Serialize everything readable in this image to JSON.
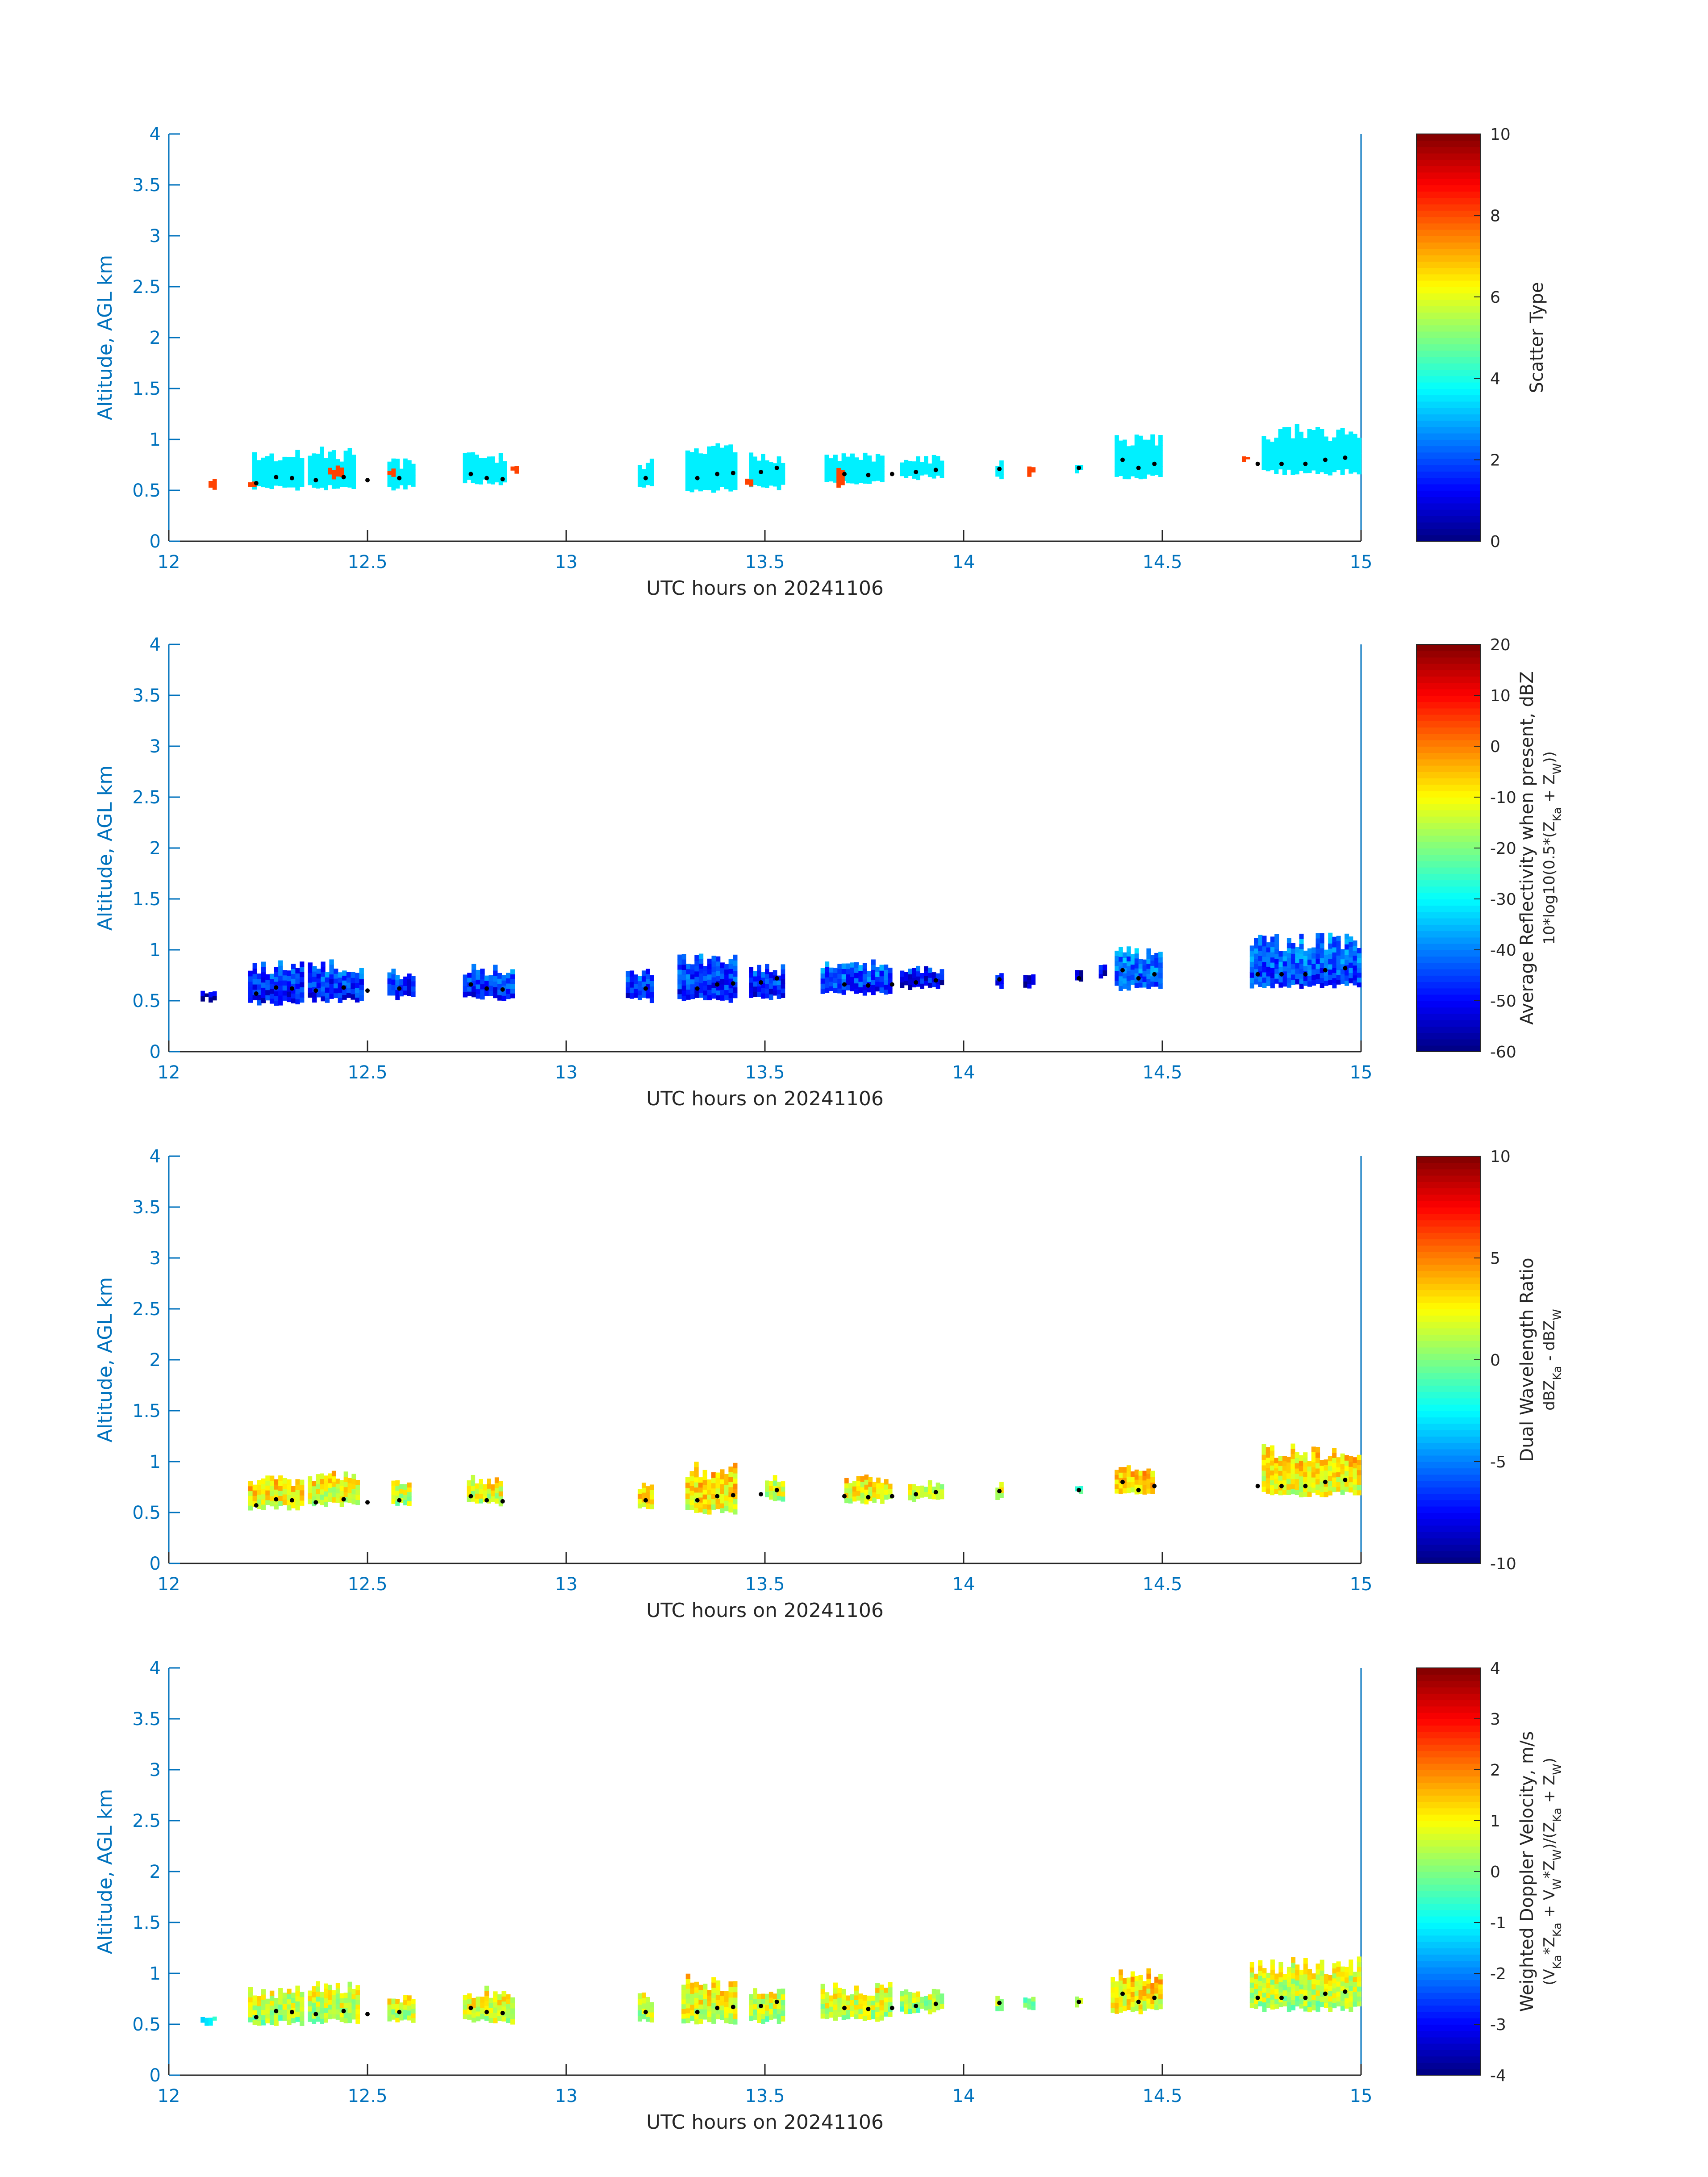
{
  "figure": {
    "date_label": "UTC hours on 20241106"
  },
  "chart_data": [
    {
      "type": "heatmap",
      "name": "scatter-type",
      "xlabel": "UTC hours on 20241106",
      "ylabel": "Altitude, AGL km",
      "xlim": [
        12,
        15
      ],
      "ylim": [
        0,
        4
      ],
      "xticks": [
        "12",
        "12.5",
        "13",
        "13.5",
        "14",
        "14.5",
        "15"
      ],
      "yticks": [
        "0",
        "0.5",
        "1",
        "1.5",
        "2",
        "2.5",
        "3",
        "3.5",
        "4"
      ],
      "colorbar": {
        "label": "Scatter Type",
        "label2": "",
        "range": [
          0,
          10
        ],
        "ticks": [
          "0",
          "2",
          "4",
          "6",
          "8",
          "10"
        ]
      },
      "clusters": [
        {
          "x0": 12.21,
          "x1": 12.34,
          "bottom": 0.5,
          "top": 0.9,
          "value": 3.6
        },
        {
          "x0": 12.35,
          "x1": 12.47,
          "bottom": 0.5,
          "top": 0.93,
          "value": 3.6
        },
        {
          "x0": 12.55,
          "x1": 12.62,
          "bottom": 0.5,
          "top": 0.82,
          "value": 3.6
        },
        {
          "x0": 12.74,
          "x1": 12.85,
          "bottom": 0.55,
          "top": 0.88,
          "value": 3.6
        },
        {
          "x0": 13.18,
          "x1": 13.22,
          "bottom": 0.5,
          "top": 0.82,
          "value": 3.6
        },
        {
          "x0": 13.3,
          "x1": 13.43,
          "bottom": 0.48,
          "top": 1.0,
          "value": 3.6
        },
        {
          "x0": 13.46,
          "x1": 13.55,
          "bottom": 0.5,
          "top": 0.88,
          "value": 3.6
        },
        {
          "x0": 13.65,
          "x1": 13.8,
          "bottom": 0.55,
          "top": 0.88,
          "value": 3.6
        },
        {
          "x0": 13.84,
          "x1": 13.95,
          "bottom": 0.6,
          "top": 0.85,
          "value": 3.6
        },
        {
          "x0": 14.08,
          "x1": 14.1,
          "bottom": 0.6,
          "top": 0.8,
          "value": 3.6
        },
        {
          "x0": 14.28,
          "x1": 14.3,
          "bottom": 0.65,
          "top": 0.8,
          "value": 3.6
        },
        {
          "x0": 14.38,
          "x1": 14.5,
          "bottom": 0.6,
          "top": 1.05,
          "value": 3.6
        },
        {
          "x0": 14.75,
          "x1": 15.0,
          "bottom": 0.65,
          "top": 1.15,
          "value": 3.6
        },
        {
          "x0": 12.1,
          "x1": 12.12,
          "bottom": 0.48,
          "top": 0.62,
          "value": 8.1
        },
        {
          "x0": 12.2,
          "x1": 12.22,
          "bottom": 0.48,
          "top": 0.62,
          "value": 8.1
        },
        {
          "x0": 12.4,
          "x1": 12.44,
          "bottom": 0.6,
          "top": 0.75,
          "value": 8.1
        },
        {
          "x0": 12.55,
          "x1": 12.57,
          "bottom": 0.6,
          "top": 0.72,
          "value": 8.1
        },
        {
          "x0": 12.86,
          "x1": 12.88,
          "bottom": 0.65,
          "top": 0.75,
          "value": 8.1
        },
        {
          "x0": 13.45,
          "x1": 13.47,
          "bottom": 0.52,
          "top": 0.62,
          "value": 8.1
        },
        {
          "x0": 13.68,
          "x1": 13.7,
          "bottom": 0.52,
          "top": 0.78,
          "value": 8.1
        },
        {
          "x0": 14.16,
          "x1": 14.18,
          "bottom": 0.62,
          "top": 0.75,
          "value": 8.1
        },
        {
          "x0": 14.7,
          "x1": 14.72,
          "bottom": 0.75,
          "top": 0.85,
          "value": 8.1
        }
      ],
      "cloud_base": [
        [
          12.22,
          0.57
        ],
        [
          12.27,
          0.63
        ],
        [
          12.31,
          0.62
        ],
        [
          12.37,
          0.6
        ],
        [
          12.44,
          0.63
        ],
        [
          12.5,
          0.6
        ],
        [
          12.58,
          0.62
        ],
        [
          12.76,
          0.66
        ],
        [
          12.8,
          0.62
        ],
        [
          12.84,
          0.61
        ],
        [
          13.2,
          0.62
        ],
        [
          13.33,
          0.62
        ],
        [
          13.38,
          0.66
        ],
        [
          13.42,
          0.67
        ],
        [
          13.49,
          0.68
        ],
        [
          13.53,
          0.72
        ],
        [
          13.7,
          0.66
        ],
        [
          13.76,
          0.65
        ],
        [
          13.82,
          0.66
        ],
        [
          13.88,
          0.68
        ],
        [
          13.93,
          0.7
        ],
        [
          14.09,
          0.71
        ],
        [
          14.29,
          0.72
        ],
        [
          14.4,
          0.8
        ],
        [
          14.44,
          0.72
        ],
        [
          14.48,
          0.76
        ],
        [
          14.74,
          0.76
        ],
        [
          14.8,
          0.76
        ],
        [
          14.86,
          0.76
        ],
        [
          14.91,
          0.8
        ],
        [
          14.96,
          0.82
        ]
      ]
    },
    {
      "type": "heatmap",
      "name": "average-reflectivity",
      "xlabel": "UTC hours on 20241106",
      "ylabel": "Altitude, AGL km",
      "xlim": [
        12,
        15
      ],
      "ylim": [
        0,
        4
      ],
      "xticks": [
        "12",
        "12.5",
        "13",
        "13.5",
        "14",
        "14.5",
        "15"
      ],
      "yticks": [
        "0",
        "0.5",
        "1",
        "1.5",
        "2",
        "2.5",
        "3",
        "3.5",
        "4"
      ],
      "colorbar": {
        "label": "Average Reflectivity when present, dBZ",
        "label2": "10*log10(0.5*(Z_Ka + Z_W))",
        "range": [
          -60,
          20
        ],
        "ticks": [
          "-60",
          "-50",
          "-40",
          "-30",
          "-20",
          "-10",
          "0",
          "10",
          "20"
        ]
      },
      "clusters": [
        {
          "x0": 12.08,
          "x1": 12.12,
          "bottom": 0.48,
          "top": 0.6,
          "value": -58
        },
        {
          "x0": 12.2,
          "x1": 12.34,
          "bottom": 0.45,
          "top": 0.9,
          "value": -50
        },
        {
          "x0": 12.35,
          "x1": 12.49,
          "bottom": 0.48,
          "top": 0.93,
          "value": -49
        },
        {
          "x0": 12.55,
          "x1": 12.62,
          "bottom": 0.5,
          "top": 0.82,
          "value": -50
        },
        {
          "x0": 12.74,
          "x1": 12.87,
          "bottom": 0.5,
          "top": 0.88,
          "value": -48
        },
        {
          "x0": 13.15,
          "x1": 13.22,
          "bottom": 0.48,
          "top": 0.82,
          "value": -50
        },
        {
          "x0": 13.28,
          "x1": 13.43,
          "bottom": 0.48,
          "top": 1.02,
          "value": -49
        },
        {
          "x0": 13.46,
          "x1": 13.55,
          "bottom": 0.5,
          "top": 0.88,
          "value": -50
        },
        {
          "x0": 13.64,
          "x1": 13.82,
          "bottom": 0.55,
          "top": 0.92,
          "value": -47
        },
        {
          "x0": 13.84,
          "x1": 13.95,
          "bottom": 0.6,
          "top": 0.85,
          "value": -52
        },
        {
          "x0": 14.08,
          "x1": 14.1,
          "bottom": 0.6,
          "top": 0.8,
          "value": -54
        },
        {
          "x0": 14.15,
          "x1": 14.18,
          "bottom": 0.62,
          "top": 0.78,
          "value": -56
        },
        {
          "x0": 14.28,
          "x1": 14.3,
          "bottom": 0.65,
          "top": 0.82,
          "value": -56
        },
        {
          "x0": 14.34,
          "x1": 14.36,
          "bottom": 0.72,
          "top": 0.88,
          "value": -56
        },
        {
          "x0": 14.38,
          "x1": 14.5,
          "bottom": 0.6,
          "top": 1.05,
          "value": -45
        },
        {
          "x0": 14.72,
          "x1": 15.0,
          "bottom": 0.62,
          "top": 1.18,
          "value": -46
        }
      ],
      "cloud_base": [
        [
          12.22,
          0.57
        ],
        [
          12.27,
          0.63
        ],
        [
          12.31,
          0.62
        ],
        [
          12.37,
          0.6
        ],
        [
          12.44,
          0.63
        ],
        [
          12.5,
          0.6
        ],
        [
          12.58,
          0.62
        ],
        [
          12.76,
          0.66
        ],
        [
          12.8,
          0.62
        ],
        [
          12.84,
          0.61
        ],
        [
          13.2,
          0.62
        ],
        [
          13.33,
          0.62
        ],
        [
          13.38,
          0.66
        ],
        [
          13.42,
          0.67
        ],
        [
          13.49,
          0.68
        ],
        [
          13.53,
          0.72
        ],
        [
          13.7,
          0.66
        ],
        [
          13.76,
          0.65
        ],
        [
          13.82,
          0.66
        ],
        [
          13.88,
          0.68
        ],
        [
          13.93,
          0.7
        ],
        [
          14.09,
          0.71
        ],
        [
          14.29,
          0.72
        ],
        [
          14.4,
          0.8
        ],
        [
          14.44,
          0.72
        ],
        [
          14.48,
          0.76
        ],
        [
          14.74,
          0.76
        ],
        [
          14.8,
          0.76
        ],
        [
          14.86,
          0.76
        ],
        [
          14.91,
          0.8
        ],
        [
          14.96,
          0.82
        ]
      ]
    },
    {
      "type": "heatmap",
      "name": "dual-wavelength-ratio",
      "xlabel": "UTC hours on 20241106",
      "ylabel": "Altitude, AGL km",
      "xlim": [
        12,
        15
      ],
      "ylim": [
        0,
        4
      ],
      "xticks": [
        "12",
        "12.5",
        "13",
        "13.5",
        "14",
        "14.5",
        "15"
      ],
      "yticks": [
        "0",
        "0.5",
        "1",
        "1.5",
        "2",
        "2.5",
        "3",
        "3.5",
        "4"
      ],
      "colorbar": {
        "label": "Dual Wavelength Ratio",
        "label2": "dBZ_Ka - dBZ_W",
        "range": [
          -10,
          10
        ],
        "ticks": [
          "-10",
          "-5",
          "0",
          "5",
          "10"
        ]
      },
      "clusters": [
        {
          "x0": 12.2,
          "x1": 12.34,
          "bottom": 0.52,
          "top": 0.88,
          "value": 2.0
        },
        {
          "x0": 12.35,
          "x1": 12.48,
          "bottom": 0.55,
          "top": 0.92,
          "value": 1.5
        },
        {
          "x0": 12.56,
          "x1": 12.61,
          "bottom": 0.55,
          "top": 0.82,
          "value": 0.8
        },
        {
          "x0": 12.75,
          "x1": 12.84,
          "bottom": 0.55,
          "top": 0.88,
          "value": 1.5
        },
        {
          "x0": 13.18,
          "x1": 13.22,
          "bottom": 0.5,
          "top": 0.82,
          "value": 2.0
        },
        {
          "x0": 13.3,
          "x1": 13.43,
          "bottom": 0.48,
          "top": 1.0,
          "value": 2.2
        },
        {
          "x0": 13.5,
          "x1": 13.55,
          "bottom": 0.6,
          "top": 0.88,
          "value": 1.0
        },
        {
          "x0": 13.7,
          "x1": 13.82,
          "bottom": 0.58,
          "top": 0.88,
          "value": 1.8
        },
        {
          "x0": 13.86,
          "x1": 13.95,
          "bottom": 0.6,
          "top": 0.82,
          "value": 0.5
        },
        {
          "x0": 14.08,
          "x1": 14.1,
          "bottom": 0.6,
          "top": 0.82,
          "value": 1.5
        },
        {
          "x0": 14.28,
          "x1": 14.3,
          "bottom": 0.68,
          "top": 0.78,
          "value": -1.0
        },
        {
          "x0": 14.38,
          "x1": 14.48,
          "bottom": 0.65,
          "top": 0.98,
          "value": 2.5
        },
        {
          "x0": 14.75,
          "x1": 15.0,
          "bottom": 0.65,
          "top": 1.18,
          "value": 1.8
        }
      ],
      "cloud_base": [
        [
          12.22,
          0.57
        ],
        [
          12.27,
          0.63
        ],
        [
          12.31,
          0.62
        ],
        [
          12.37,
          0.6
        ],
        [
          12.44,
          0.63
        ],
        [
          12.5,
          0.6
        ],
        [
          12.58,
          0.62
        ],
        [
          12.76,
          0.66
        ],
        [
          12.8,
          0.62
        ],
        [
          12.84,
          0.61
        ],
        [
          13.2,
          0.62
        ],
        [
          13.33,
          0.62
        ],
        [
          13.38,
          0.66
        ],
        [
          13.42,
          0.67
        ],
        [
          13.49,
          0.68
        ],
        [
          13.53,
          0.72
        ],
        [
          13.7,
          0.66
        ],
        [
          13.76,
          0.65
        ],
        [
          13.82,
          0.66
        ],
        [
          13.88,
          0.68
        ],
        [
          13.93,
          0.7
        ],
        [
          14.09,
          0.71
        ],
        [
          14.29,
          0.72
        ],
        [
          14.4,
          0.8
        ],
        [
          14.44,
          0.72
        ],
        [
          14.48,
          0.76
        ],
        [
          14.74,
          0.76
        ],
        [
          14.8,
          0.76
        ],
        [
          14.86,
          0.76
        ],
        [
          14.91,
          0.8
        ],
        [
          14.96,
          0.82
        ]
      ]
    },
    {
      "type": "heatmap",
      "name": "weighted-doppler-velocity",
      "xlabel": "UTC hours on 20241106",
      "ylabel": "Altitude, AGL km",
      "xlim": [
        12,
        15
      ],
      "ylim": [
        0,
        4
      ],
      "xticks": [
        "12",
        "12.5",
        "13",
        "13.5",
        "14",
        "14.5",
        "15"
      ],
      "yticks": [
        "0",
        "0.5",
        "1",
        "1.5",
        "2",
        "2.5",
        "3",
        "3.5",
        "4"
      ],
      "colorbar": {
        "label": "Weighted Doppler Velocity, m/s",
        "label2": "(V_Ka*Z_Ka + V_W*Z_W)/(Z_Ka + Z_W)",
        "range": [
          -4,
          4
        ],
        "ticks": [
          "-4",
          "-3",
          "-2",
          "-1",
          "0",
          "1",
          "2",
          "3",
          "4"
        ]
      },
      "clusters": [
        {
          "x0": 12.08,
          "x1": 12.12,
          "bottom": 0.48,
          "top": 0.6,
          "value": -1.2
        },
        {
          "x0": 12.2,
          "x1": 12.34,
          "bottom": 0.48,
          "top": 0.88,
          "value": 0.2
        },
        {
          "x0": 12.35,
          "x1": 12.48,
          "bottom": 0.5,
          "top": 0.93,
          "value": 0.3
        },
        {
          "x0": 12.55,
          "x1": 12.62,
          "bottom": 0.5,
          "top": 0.82,
          "value": 0.4
        },
        {
          "x0": 12.74,
          "x1": 12.87,
          "bottom": 0.5,
          "top": 0.88,
          "value": 0.5
        },
        {
          "x0": 13.18,
          "x1": 13.22,
          "bottom": 0.5,
          "top": 0.82,
          "value": 0.2
        },
        {
          "x0": 13.29,
          "x1": 13.43,
          "bottom": 0.5,
          "top": 1.0,
          "value": 0.6
        },
        {
          "x0": 13.46,
          "x1": 13.55,
          "bottom": 0.5,
          "top": 0.88,
          "value": 0.3
        },
        {
          "x0": 13.64,
          "x1": 13.82,
          "bottom": 0.52,
          "top": 0.92,
          "value": 0.4
        },
        {
          "x0": 13.84,
          "x1": 13.95,
          "bottom": 0.6,
          "top": 0.85,
          "value": 0.1
        },
        {
          "x0": 14.08,
          "x1": 14.1,
          "bottom": 0.6,
          "top": 0.82,
          "value": 0.0
        },
        {
          "x0": 14.15,
          "x1": 14.18,
          "bottom": 0.62,
          "top": 0.78,
          "value": -0.3
        },
        {
          "x0": 14.28,
          "x1": 14.3,
          "bottom": 0.65,
          "top": 0.8,
          "value": 0.5
        },
        {
          "x0": 14.37,
          "x1": 14.5,
          "bottom": 0.6,
          "top": 1.05,
          "value": 0.8
        },
        {
          "x0": 14.72,
          "x1": 15.0,
          "bottom": 0.62,
          "top": 1.18,
          "value": 0.3
        }
      ],
      "cloud_base": [
        [
          12.22,
          0.57
        ],
        [
          12.27,
          0.63
        ],
        [
          12.31,
          0.62
        ],
        [
          12.37,
          0.6
        ],
        [
          12.44,
          0.63
        ],
        [
          12.5,
          0.6
        ],
        [
          12.58,
          0.62
        ],
        [
          12.76,
          0.66
        ],
        [
          12.8,
          0.62
        ],
        [
          12.84,
          0.61
        ],
        [
          13.2,
          0.62
        ],
        [
          13.33,
          0.62
        ],
        [
          13.38,
          0.66
        ],
        [
          13.42,
          0.67
        ],
        [
          13.49,
          0.68
        ],
        [
          13.53,
          0.72
        ],
        [
          13.7,
          0.66
        ],
        [
          13.76,
          0.65
        ],
        [
          13.82,
          0.66
        ],
        [
          13.88,
          0.68
        ],
        [
          13.93,
          0.7
        ],
        [
          14.09,
          0.71
        ],
        [
          14.29,
          0.72
        ],
        [
          14.4,
          0.8
        ],
        [
          14.44,
          0.72
        ],
        [
          14.48,
          0.76
        ],
        [
          14.74,
          0.76
        ],
        [
          14.8,
          0.76
        ],
        [
          14.86,
          0.76
        ],
        [
          14.91,
          0.8
        ],
        [
          14.96,
          0.82
        ]
      ]
    }
  ]
}
